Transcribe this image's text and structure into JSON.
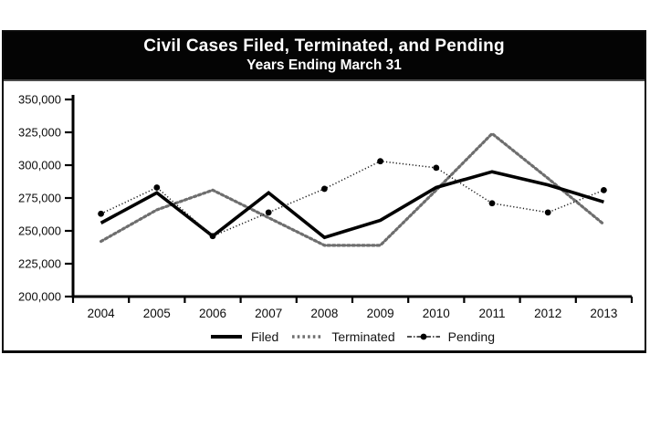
{
  "banner": {
    "title": "Civil Cases Filed, Terminated, and Pending",
    "subtitle": "Years Ending March 31",
    "background": "#000000",
    "text_color": "#ffffff"
  },
  "chart_data": {
    "type": "line",
    "title": "Civil Cases Filed, Terminated, and Pending",
    "subtitle": "Years Ending March 31",
    "categories": [
      "2004",
      "2005",
      "2006",
      "2007",
      "2008",
      "2009",
      "2010",
      "2011",
      "2012",
      "2013"
    ],
    "series": [
      {
        "name": "Filed",
        "color": "#000000",
        "line_style": "solid",
        "values": [
          256000,
          279000,
          246000,
          279000,
          245000,
          258000,
          283000,
          295000,
          285000,
          272000
        ]
      },
      {
        "name": "Terminated",
        "color": "#6e6e6e",
        "line_style": "dotted",
        "values": [
          242000,
          266000,
          281000,
          260000,
          239000,
          239000,
          281000,
          324000,
          290000,
          255000
        ]
      },
      {
        "name": "Pending",
        "color": "#1a1a1a",
        "line_style": "fine-dotted",
        "marker": "circle",
        "values": [
          263000,
          283000,
          246000,
          264000,
          282000,
          303000,
          298000,
          271000,
          264000,
          281000
        ]
      }
    ],
    "ylim": [
      200000,
      350000
    ],
    "y_ticks": [
      200000,
      225000,
      250000,
      275000,
      300000,
      325000,
      350000
    ],
    "y_tick_labels": [
      "200,000",
      "225,000",
      "250,000",
      "275,000",
      "300,000",
      "325,000",
      "350,000"
    ],
    "xlabel": "",
    "ylabel": "",
    "grid": false,
    "legend_position": "bottom",
    "legend_labels": [
      "Filed",
      "Terminated",
      "Pending"
    ]
  }
}
